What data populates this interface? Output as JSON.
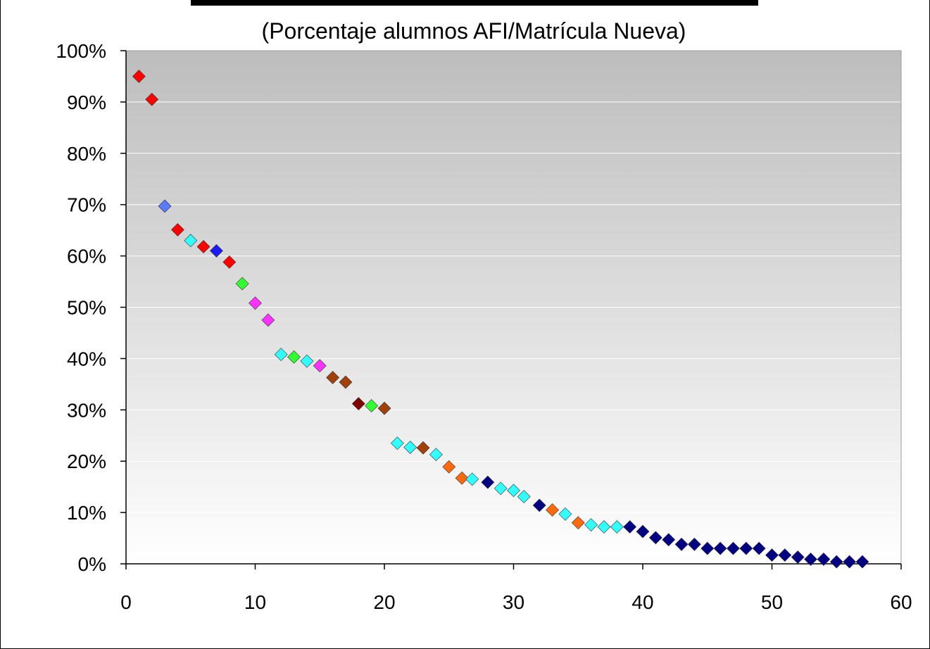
{
  "chart_data": {
    "type": "scatter",
    "title": "",
    "subtitle": "(Porcentaje alumnos AFI/Matrícula Nueva)",
    "xlabel": "",
    "ylabel": "",
    "xlim": [
      0,
      60
    ],
    "ylim": [
      0,
      1
    ],
    "x_ticks": [
      "0",
      "10",
      "20",
      "30",
      "40",
      "50",
      "60"
    ],
    "y_ticks": [
      "0%",
      "10%",
      "20%",
      "30%",
      "40%",
      "50%",
      "60%",
      "70%",
      "80%",
      "90%",
      "100%"
    ],
    "grid": "horizontal",
    "legend": "none",
    "marker": "diamond",
    "plot_background": "gradient gray (#bdbdbd) to white",
    "colors": {
      "red": "#ff0000",
      "blue": "#1c1cf0",
      "light_blue": "#5a7bff",
      "cyan": "#33ffff",
      "green": "#33ff33",
      "magenta": "#ff33ff",
      "brown": "#a0410a",
      "dark_red": "#800000",
      "orange": "#ff6a10",
      "navy": "#000080"
    },
    "points": [
      {
        "x": 1,
        "y": 0.95,
        "color": "#ff0000"
      },
      {
        "x": 2,
        "y": 0.905,
        "color": "#ff0000"
      },
      {
        "x": 3,
        "y": 0.697,
        "color": "#5a7bff"
      },
      {
        "x": 4,
        "y": 0.651,
        "color": "#ff0000"
      },
      {
        "x": 5,
        "y": 0.63,
        "color": "#33ffff"
      },
      {
        "x": 6,
        "y": 0.618,
        "color": "#ff0000"
      },
      {
        "x": 7,
        "y": 0.61,
        "color": "#1c1cf0"
      },
      {
        "x": 8,
        "y": 0.588,
        "color": "#ff0000"
      },
      {
        "x": 9,
        "y": 0.546,
        "color": "#33ff33"
      },
      {
        "x": 10,
        "y": 0.508,
        "color": "#ff33ff"
      },
      {
        "x": 11,
        "y": 0.475,
        "color": "#ff33ff"
      },
      {
        "x": 12,
        "y": 0.408,
        "color": "#33ffff"
      },
      {
        "x": 13,
        "y": 0.403,
        "color": "#33ff33"
      },
      {
        "x": 14,
        "y": 0.395,
        "color": "#33ffff"
      },
      {
        "x": 15,
        "y": 0.386,
        "color": "#ff33ff"
      },
      {
        "x": 16,
        "y": 0.363,
        "color": "#a0410a"
      },
      {
        "x": 17,
        "y": 0.354,
        "color": "#a0410a"
      },
      {
        "x": 18,
        "y": 0.312,
        "color": "#800000"
      },
      {
        "x": 19,
        "y": 0.308,
        "color": "#33ff33"
      },
      {
        "x": 20,
        "y": 0.303,
        "color": "#a0410a"
      },
      {
        "x": 21,
        "y": 0.235,
        "color": "#33ffff"
      },
      {
        "x": 22,
        "y": 0.227,
        "color": "#33ffff"
      },
      {
        "x": 23,
        "y": 0.226,
        "color": "#a0410a"
      },
      {
        "x": 24,
        "y": 0.213,
        "color": "#33ffff"
      },
      {
        "x": 25,
        "y": 0.189,
        "color": "#ff6a10"
      },
      {
        "x": 26,
        "y": 0.167,
        "color": "#ff6a10"
      },
      {
        "x": 26.8,
        "y": 0.165,
        "color": "#33ffff"
      },
      {
        "x": 28,
        "y": 0.159,
        "color": "#000080"
      },
      {
        "x": 29,
        "y": 0.147,
        "color": "#33ffff"
      },
      {
        "x": 30,
        "y": 0.143,
        "color": "#33ffff"
      },
      {
        "x": 30.8,
        "y": 0.131,
        "color": "#33ffff"
      },
      {
        "x": 32,
        "y": 0.114,
        "color": "#000080"
      },
      {
        "x": 33,
        "y": 0.105,
        "color": "#ff6a10"
      },
      {
        "x": 34,
        "y": 0.097,
        "color": "#33ffff"
      },
      {
        "x": 35,
        "y": 0.08,
        "color": "#ff6a10"
      },
      {
        "x": 36,
        "y": 0.076,
        "color": "#33ffff"
      },
      {
        "x": 37,
        "y": 0.072,
        "color": "#33ffff"
      },
      {
        "x": 38,
        "y": 0.072,
        "color": "#33ffff"
      },
      {
        "x": 39,
        "y": 0.072,
        "color": "#000080"
      },
      {
        "x": 40,
        "y": 0.063,
        "color": "#000080"
      },
      {
        "x": 41,
        "y": 0.051,
        "color": "#000080"
      },
      {
        "x": 42,
        "y": 0.047,
        "color": "#000080"
      },
      {
        "x": 43,
        "y": 0.038,
        "color": "#000080"
      },
      {
        "x": 44,
        "y": 0.038,
        "color": "#000080"
      },
      {
        "x": 45,
        "y": 0.03,
        "color": "#000080"
      },
      {
        "x": 46,
        "y": 0.03,
        "color": "#000080"
      },
      {
        "x": 47,
        "y": 0.03,
        "color": "#000080"
      },
      {
        "x": 48,
        "y": 0.03,
        "color": "#000080"
      },
      {
        "x": 49,
        "y": 0.03,
        "color": "#000080"
      },
      {
        "x": 50,
        "y": 0.017,
        "color": "#000080"
      },
      {
        "x": 51,
        "y": 0.017,
        "color": "#000080"
      },
      {
        "x": 52,
        "y": 0.013,
        "color": "#000080"
      },
      {
        "x": 53,
        "y": 0.009,
        "color": "#000080"
      },
      {
        "x": 54,
        "y": 0.009,
        "color": "#000080"
      },
      {
        "x": 55,
        "y": 0.004,
        "color": "#000080"
      },
      {
        "x": 56,
        "y": 0.004,
        "color": "#000080"
      },
      {
        "x": 57,
        "y": 0.004,
        "color": "#000080"
      }
    ]
  }
}
